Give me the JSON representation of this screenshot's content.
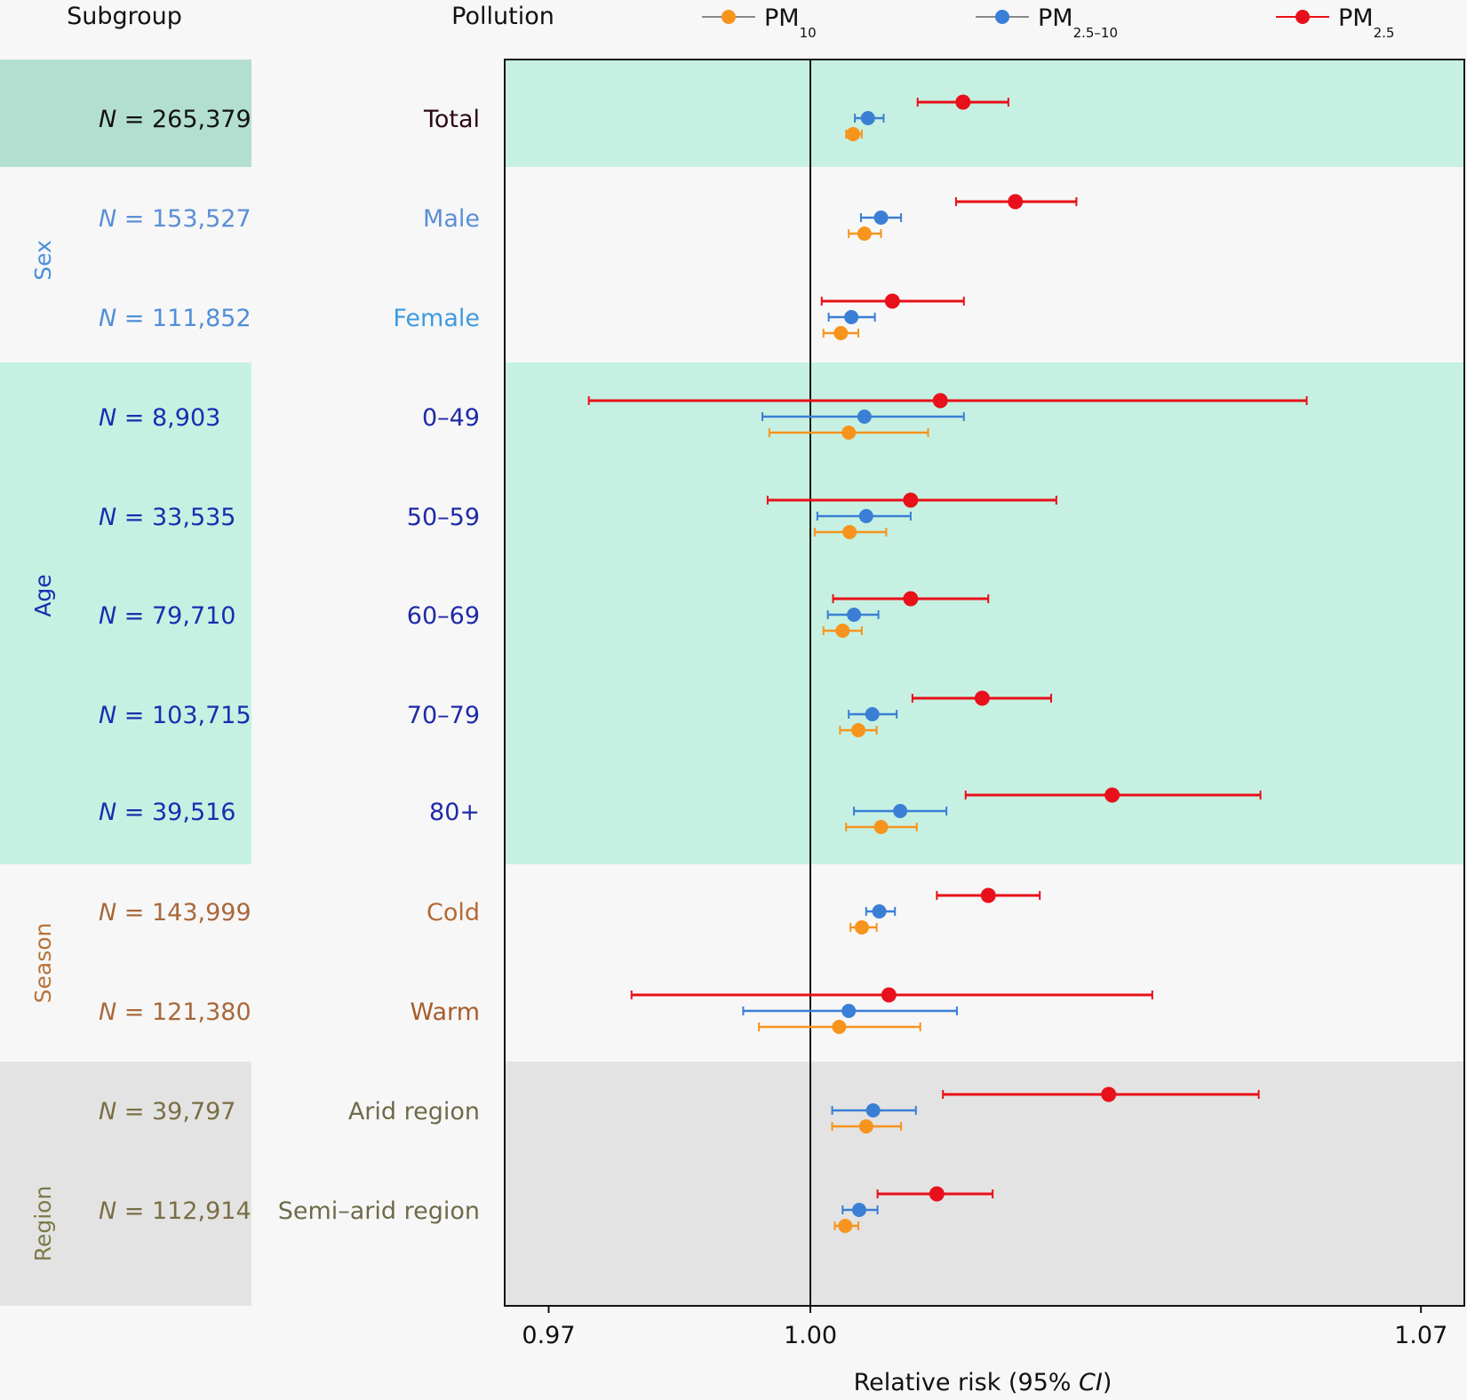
{
  "chart_data": {
    "type": "forest",
    "title": "",
    "column_headers": {
      "subgroup": "Subgroup",
      "pollution": "Pollution"
    },
    "xlabel": "Relative risk (95% CI)",
    "xlabel_parts": {
      "main": "Relative risk (95% ",
      "italic": "CI",
      "end": ")"
    },
    "xlim": [
      0.967,
      1.0735
    ],
    "xticks": [
      0.97,
      1.0,
      1.07
    ],
    "xtick_labels": [
      "0.97",
      "1.00",
      "1.07"
    ],
    "reference_line": 1.0,
    "legend": {
      "placement": "top",
      "entries": [
        {
          "key": "pm10",
          "main": "PM",
          "sub": "10",
          "color": "#f7941d"
        },
        {
          "key": "pm2510",
          "main": "PM",
          "sub": "2.5–10",
          "color": "#3a7fd5"
        },
        {
          "key": "pm25",
          "main": "PM",
          "sub": "2.5",
          "color": "#e8101a"
        }
      ]
    },
    "groups": [
      {
        "name": "",
        "label_color": "#111111",
        "band_color": "#c6f1e2",
        "left_band_color": "#b3dfd0",
        "rows": [
          0
        ]
      },
      {
        "name": "Sex",
        "label_color": "#4a90d9",
        "band_color": "#f7f7f7",
        "left_band_color": "#f7f7f7",
        "rows": [
          1,
          2
        ]
      },
      {
        "name": "Age",
        "label_color": "#1a2db0",
        "band_color": "#c6f1e2",
        "left_band_color": "#c6f1e2",
        "rows": [
          3,
          4,
          5,
          6,
          7
        ]
      },
      {
        "name": "Season",
        "label_color": "#b5733a",
        "band_color": "#f7f7f7",
        "left_band_color": "#f7f7f7",
        "rows": [
          8,
          9
        ]
      },
      {
        "name": "Region",
        "label_color": "#7d7a4a",
        "band_color": "#e3e3e3",
        "left_band_color": "#e3e3e3",
        "rows": [
          10,
          11
        ]
      }
    ],
    "rows": [
      {
        "label": "Total",
        "n": "265,379",
        "label_color": "#2a0a10",
        "n_color": "#111111",
        "pm25": {
          "rr": 1.0175,
          "lo": 1.0123,
          "hi": 1.0227
        },
        "pm2510": {
          "rr": 1.0066,
          "lo": 1.0051,
          "hi": 1.0084
        },
        "pm10": {
          "rr": 1.0049,
          "lo": 1.0041,
          "hi": 1.0059
        }
      },
      {
        "label": "Male",
        "n": "153,527",
        "label_color": "#5b8fd6",
        "n_color": "#5b8fd6",
        "pm25": {
          "rr": 1.0235,
          "lo": 1.0167,
          "hi": 1.0305
        },
        "pm2510": {
          "rr": 1.0081,
          "lo": 1.0058,
          "hi": 1.0104
        },
        "pm10": {
          "rr": 1.0062,
          "lo": 1.0044,
          "hi": 1.0081
        }
      },
      {
        "label": "Female",
        "n": "111,852",
        "label_color": "#3d9ae0",
        "n_color": "#4f8fd8",
        "pm25": {
          "rr": 1.0094,
          "lo": 1.0013,
          "hi": 1.0176
        },
        "pm2510": {
          "rr": 1.0047,
          "lo": 1.0021,
          "hi": 1.0074
        },
        "pm10": {
          "rr": 1.0035,
          "lo": 1.0015,
          "hi": 1.0055
        }
      },
      {
        "label": "0–49",
        "n": "8,903",
        "label_color": "#1f2aa8",
        "n_color": "#1a2db0",
        "pm25": {
          "rr": 1.0149,
          "lo": 0.9746,
          "hi": 1.0569
        },
        "pm2510": {
          "rr": 1.0062,
          "lo": 0.9945,
          "hi": 1.0176
        },
        "pm10": {
          "rr": 1.0044,
          "lo": 0.9953,
          "hi": 1.0135
        }
      },
      {
        "label": "50–59",
        "n": "33,535",
        "label_color": "#1f2aa8",
        "n_color": "#1a2db0",
        "pm25": {
          "rr": 1.0115,
          "lo": 0.9951,
          "hi": 1.0282
        },
        "pm2510": {
          "rr": 1.0064,
          "lo": 1.0008,
          "hi": 1.0115
        },
        "pm10": {
          "rr": 1.0045,
          "lo": 1.0005,
          "hi": 1.0087
        }
      },
      {
        "label": "60–69",
        "n": "79,710",
        "label_color": "#1f2aa8",
        "n_color": "#1a2db0",
        "pm25": {
          "rr": 1.0115,
          "lo": 1.0026,
          "hi": 1.0204
        },
        "pm2510": {
          "rr": 1.005,
          "lo": 1.002,
          "hi": 1.0078
        },
        "pm10": {
          "rr": 1.0037,
          "lo": 1.0015,
          "hi": 1.0059
        }
      },
      {
        "label": "70–79",
        "n": "103,715",
        "label_color": "#1f2aa8",
        "n_color": "#1a2db0",
        "pm25": {
          "rr": 1.0197,
          "lo": 1.0117,
          "hi": 1.0276
        },
        "pm2510": {
          "rr": 1.0071,
          "lo": 1.0044,
          "hi": 1.0099
        },
        "pm10": {
          "rr": 1.0055,
          "lo": 1.0034,
          "hi": 1.0076
        }
      },
      {
        "label": "80+",
        "n": "39,516",
        "label_color": "#1f2aa8",
        "n_color": "#1a2db0",
        "pm25": {
          "rr": 1.0346,
          "lo": 1.0178,
          "hi": 1.0516
        },
        "pm2510": {
          "rr": 1.0103,
          "lo": 1.005,
          "hi": 1.0156
        },
        "pm10": {
          "rr": 1.0081,
          "lo": 1.0041,
          "hi": 1.0122
        }
      },
      {
        "label": "Cold",
        "n": "143,999",
        "label_color": "#b36a35",
        "n_color": "#a8683a",
        "pm25": {
          "rr": 1.0204,
          "lo": 1.0145,
          "hi": 1.0263
        },
        "pm2510": {
          "rr": 1.0079,
          "lo": 1.0064,
          "hi": 1.0097
        },
        "pm10": {
          "rr": 1.0059,
          "lo": 1.0046,
          "hi": 1.0076
        }
      },
      {
        "label": "Warm",
        "n": "121,380",
        "label_color": "#a85c2a",
        "n_color": "#a8683a",
        "pm25": {
          "rr": 1.009,
          "lo": 0.9795,
          "hi": 1.0392
        },
        "pm2510": {
          "rr": 1.0044,
          "lo": 0.9923,
          "hi": 1.0168
        },
        "pm10": {
          "rr": 1.0033,
          "lo": 0.9941,
          "hi": 1.0126
        }
      },
      {
        "label": "Arid region",
        "n": "39,797",
        "label_color": "#6e6a4a",
        "n_color": "#7a6e45",
        "pm25": {
          "rr": 1.0342,
          "lo": 1.0152,
          "hi": 1.0514
        },
        "pm2510": {
          "rr": 1.0072,
          "lo": 1.0025,
          "hi": 1.0121
        },
        "pm10": {
          "rr": 1.0064,
          "lo": 1.0025,
          "hi": 1.0104
        }
      },
      {
        "label": "Semi-arid region",
        "n": "112,914",
        "label_color": "#6e6a4a",
        "n_color": "#7a6e45",
        "pm25": {
          "rr": 1.0145,
          "lo": 1.0077,
          "hi": 1.0209
        },
        "pm2510": {
          "rr": 1.0056,
          "lo": 1.0037,
          "hi": 1.0077
        },
        "pm10": {
          "rr": 1.004,
          "lo": 1.0028,
          "hi": 1.0055
        }
      }
    ],
    "n_prefix": "N",
    "n_equals": " = "
  }
}
